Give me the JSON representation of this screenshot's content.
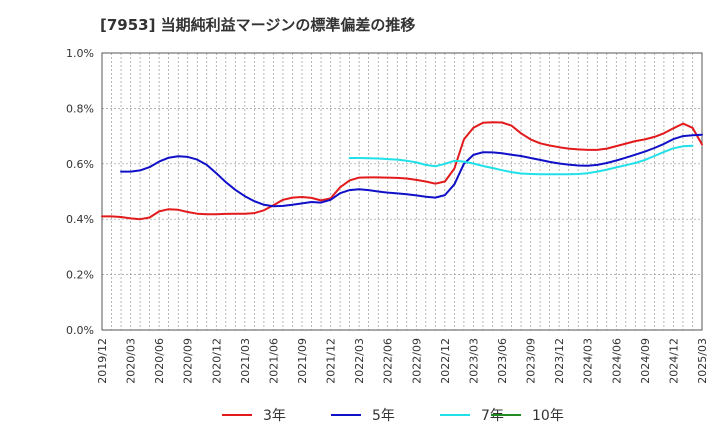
{
  "chart_data": {
    "type": "line",
    "title": "[7953]  当期純利益マージンの標準偏差の推移",
    "ylim": [
      0.0,
      1.0
    ],
    "yticks": [
      0.0,
      0.2,
      0.4,
      0.6,
      0.8,
      1.0
    ],
    "ytick_labels": [
      "0.0%",
      "0.2%",
      "0.4%",
      "0.6%",
      "0.8%",
      "1.0%"
    ],
    "xlim": [
      "2019-12",
      "2025-03"
    ],
    "xtick_labels": [
      "2019/12",
      "2020/03",
      "2020/06",
      "2020/09",
      "2020/12",
      "2021/03",
      "2021/06",
      "2021/09",
      "2021/12",
      "2022/03",
      "2022/06",
      "2022/09",
      "2022/12",
      "2023/03",
      "2023/06",
      "2023/09",
      "2023/12",
      "2024/03",
      "2024/06",
      "2024/09",
      "2024/12",
      "2025/03"
    ],
    "grid": true,
    "legend_position": "bottom",
    "series": [
      {
        "name": "3年",
        "color": "#e31a1c",
        "start": "2019-12",
        "values": [
          0.41,
          0.41,
          0.408,
          0.403,
          0.4,
          0.406,
          0.428,
          0.436,
          0.434,
          0.426,
          0.42,
          0.418,
          0.418,
          0.419,
          0.42,
          0.42,
          0.422,
          0.432,
          0.45,
          0.47,
          0.478,
          0.48,
          0.477,
          0.468,
          0.475,
          0.515,
          0.54,
          0.55,
          0.551,
          0.551,
          0.55,
          0.549,
          0.547,
          0.542,
          0.536,
          0.528,
          0.536,
          0.583,
          0.688,
          0.73,
          0.748,
          0.75,
          0.749,
          0.738,
          0.71,
          0.688,
          0.674,
          0.666,
          0.66,
          0.655,
          0.652,
          0.65,
          0.65,
          0.655,
          0.664,
          0.673,
          0.682,
          0.688,
          0.697,
          0.71,
          0.728,
          0.745,
          0.73,
          0.67
        ]
      },
      {
        "name": "5年",
        "color": "#1010c8",
        "start": "2020-02",
        "values": [
          0.572,
          0.572,
          0.576,
          0.588,
          0.608,
          0.622,
          0.627,
          0.625,
          0.615,
          0.596,
          0.566,
          0.534,
          0.506,
          0.483,
          0.465,
          0.452,
          0.447,
          0.448,
          0.452,
          0.457,
          0.462,
          0.46,
          0.47,
          0.494,
          0.505,
          0.508,
          0.505,
          0.5,
          0.496,
          0.493,
          0.49,
          0.486,
          0.481,
          0.478,
          0.487,
          0.526,
          0.6,
          0.632,
          0.642,
          0.641,
          0.638,
          0.633,
          0.628,
          0.621,
          0.614,
          0.607,
          0.601,
          0.597,
          0.594,
          0.593,
          0.596,
          0.603,
          0.612,
          0.622,
          0.633,
          0.644,
          0.657,
          0.672,
          0.689,
          0.7,
          0.703,
          0.705
        ]
      },
      {
        "name": "7年",
        "color": "#20e0e8",
        "start": "2022-02",
        "values": [
          0.621,
          0.621,
          0.62,
          0.619,
          0.617,
          0.615,
          0.611,
          0.605,
          0.596,
          0.591,
          0.6,
          0.611,
          0.608,
          0.601,
          0.592,
          0.585,
          0.577,
          0.57,
          0.565,
          0.563,
          0.562,
          0.562,
          0.562,
          0.562,
          0.563,
          0.566,
          0.572,
          0.579,
          0.587,
          0.595,
          0.603,
          0.614,
          0.628,
          0.643,
          0.656,
          0.663,
          0.665
        ]
      },
      {
        "name": "10年",
        "color": "#228b22",
        "start": "2024-12",
        "values": []
      }
    ]
  }
}
